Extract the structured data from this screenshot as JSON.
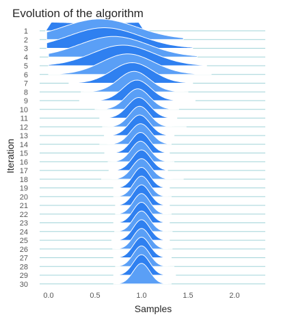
{
  "chart_data": {
    "type": "ridgeline",
    "title": "Evolution of the algorithm",
    "xlabel": "Samples",
    "ylabel": "Iteration",
    "xlim": [
      -0.05,
      2.3
    ],
    "x_ticks": [
      "0.0",
      "0.5",
      "1.0",
      "1.5",
      "2.0"
    ],
    "x_tick_values": [
      0.0,
      0.5,
      1.0,
      1.5,
      2.0
    ],
    "grid": false,
    "baseline_color": "#9fd3d8",
    "colors": [
      "#2f80f0",
      "#5a9ff6"
    ],
    "series": [
      {
        "name": "1",
        "mean": 0.5,
        "sd": 0.6,
        "min": -0.03,
        "max": 1.03,
        "flat": true
      },
      {
        "name": "2",
        "mean": 0.55,
        "sd": 0.4,
        "min": -0.02,
        "max": 1.45
      },
      {
        "name": "3",
        "mean": 0.6,
        "sd": 0.38,
        "min": -0.02,
        "max": 1.55
      },
      {
        "name": "4",
        "mean": 0.7,
        "sd": 0.37,
        "min": 0.0,
        "max": 1.6
      },
      {
        "name": "5",
        "mean": 0.8,
        "sd": 0.33,
        "min": 0.0,
        "max": 1.7
      },
      {
        "name": "6",
        "mean": 0.85,
        "sd": 0.28,
        "min": 0.0,
        "max": 1.75
      },
      {
        "name": "7",
        "mean": 0.9,
        "sd": 0.22,
        "min": 0.22,
        "max": 1.55
      },
      {
        "name": "8",
        "mean": 0.92,
        "sd": 0.17,
        "min": 0.35,
        "max": 1.5
      },
      {
        "name": "9",
        "mean": 0.95,
        "sd": 0.15,
        "min": 0.33,
        "max": 1.58
      },
      {
        "name": "10",
        "mean": 0.96,
        "sd": 0.13,
        "min": 0.5,
        "max": 1.4
      },
      {
        "name": "11",
        "mean": 0.97,
        "sd": 0.12,
        "min": 0.55,
        "max": 1.38
      },
      {
        "name": "12",
        "mean": 0.98,
        "sd": 0.11,
        "min": 0.58,
        "max": 1.48
      },
      {
        "name": "13",
        "mean": 0.98,
        "sd": 0.11,
        "min": 0.6,
        "max": 1.35
      },
      {
        "name": "14",
        "mean": 0.99,
        "sd": 0.11,
        "min": 0.55,
        "max": 1.32
      },
      {
        "name": "15",
        "mean": 0.99,
        "sd": 0.1,
        "min": 0.6,
        "max": 1.3
      },
      {
        "name": "16",
        "mean": 0.99,
        "sd": 0.1,
        "min": 0.64,
        "max": 1.35
      },
      {
        "name": "17",
        "mean": 1.0,
        "sd": 0.1,
        "min": 0.65,
        "max": 1.28
      },
      {
        "name": "18",
        "mean": 1.0,
        "sd": 0.1,
        "min": 0.57,
        "max": 1.45
      },
      {
        "name": "19",
        "mean": 1.0,
        "sd": 0.09,
        "min": 0.7,
        "max": 1.3
      },
      {
        "name": "20",
        "mean": 1.0,
        "sd": 0.09,
        "min": 0.7,
        "max": 1.32
      },
      {
        "name": "21",
        "mean": 1.0,
        "sd": 0.09,
        "min": 0.72,
        "max": 1.3
      },
      {
        "name": "22",
        "mean": 1.0,
        "sd": 0.09,
        "min": 0.72,
        "max": 1.32
      },
      {
        "name": "23",
        "mean": 1.0,
        "sd": 0.09,
        "min": 0.7,
        "max": 1.3
      },
      {
        "name": "24",
        "mean": 1.0,
        "sd": 0.09,
        "min": 0.71,
        "max": 1.33
      },
      {
        "name": "25",
        "mean": 1.0,
        "sd": 0.09,
        "min": 0.68,
        "max": 1.3
      },
      {
        "name": "26",
        "mean": 1.0,
        "sd": 0.09,
        "min": 0.69,
        "max": 1.33
      },
      {
        "name": "27",
        "mean": 1.0,
        "sd": 0.09,
        "min": 0.7,
        "max": 1.32
      },
      {
        "name": "28",
        "mean": 1.0,
        "sd": 0.09,
        "min": 0.72,
        "max": 1.35
      },
      {
        "name": "29",
        "mean": 1.0,
        "sd": 0.09,
        "min": 0.7,
        "max": 1.37
      },
      {
        "name": "30",
        "mean": 1.0,
        "sd": 0.09,
        "min": 0.7,
        "max": 1.32
      }
    ]
  }
}
